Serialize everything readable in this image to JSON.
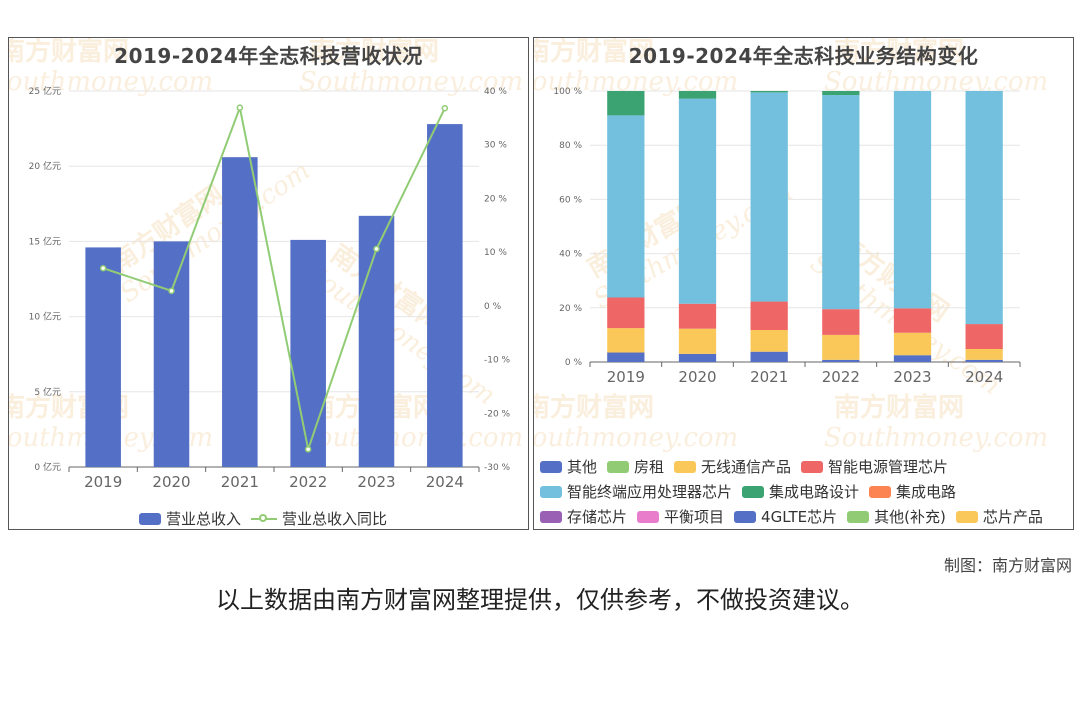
{
  "watermark": {
    "cn": "南方财富网",
    "en": "Southmoney.com"
  },
  "credit": "制图：南方财富网",
  "disclaimer": "以上数据由南方财富网整理提供，仅供参考，不做投资建议。",
  "colors": {
    "revenue_bar": "#5470c6",
    "yoy_line": "#91cc75"
  },
  "chart_data": [
    {
      "type": "bar",
      "title": "2019-2024年全志科技营收状况",
      "categories": [
        "2019",
        "2020",
        "2021",
        "2022",
        "2023",
        "2024"
      ],
      "series": [
        {
          "name": "营业总收入",
          "type": "bar",
          "axis": "left",
          "values": [
            14.6,
            15.0,
            20.6,
            15.1,
            16.7,
            22.8
          ]
        },
        {
          "name": "营业总收入同比",
          "type": "line",
          "axis": "right",
          "values": [
            7.0,
            2.8,
            36.9,
            -26.7,
            10.6,
            36.8
          ]
        }
      ],
      "left_axis": {
        "ticks": [
          "0 亿元",
          "5 亿元",
          "10 亿元",
          "15 亿元",
          "20 亿元",
          "25 亿元"
        ],
        "ylim": [
          0,
          25
        ]
      },
      "right_axis": {
        "ticks": [
          "-30 %",
          "-20 %",
          "-10 %",
          "0 %",
          "10 %",
          "20 %",
          "30 %",
          "40 %"
        ],
        "ylim": [
          -30,
          40
        ]
      },
      "grid": true,
      "legend": "bottom"
    },
    {
      "type": "bar",
      "stacked": true,
      "title": "2019-2024年全志科技业务结构变化",
      "categories": [
        "2019",
        "2020",
        "2021",
        "2022",
        "2023",
        "2024"
      ],
      "y_ticks": [
        "0 %",
        "20 %",
        "40 %",
        "60 %",
        "80 %",
        "100 %"
      ],
      "ylim": [
        0,
        100
      ],
      "grid": true,
      "legend": "bottom",
      "series": [
        {
          "name": "其他",
          "color": "#5470c6",
          "values": [
            3.5,
            3.0,
            3.8,
            0.8,
            2.5,
            0.8
          ]
        },
        {
          "name": "房租",
          "color": "#91cc75",
          "values": [
            0,
            0,
            0,
            0,
            0,
            0
          ]
        },
        {
          "name": "无线通信产品",
          "color": "#fac858",
          "values": [
            9.0,
            9.3,
            8.0,
            9.2,
            8.3,
            4.0
          ]
        },
        {
          "name": "智能电源管理芯片",
          "color": "#ee6666",
          "values": [
            11.3,
            9.2,
            10.5,
            9.5,
            9.0,
            9.2
          ]
        },
        {
          "name": "智能终端应用处理器芯片",
          "color": "#73c0de",
          "values": [
            67.2,
            75.7,
            77.2,
            79.0,
            80.2,
            86.0
          ]
        },
        {
          "name": "集成电路设计",
          "color": "#3ba272",
          "values": [
            9.0,
            2.8,
            0.5,
            1.5,
            0,
            0
          ]
        },
        {
          "name": "集成电路",
          "color": "#fc8452",
          "values": [
            0,
            0,
            0,
            0,
            0,
            0
          ]
        },
        {
          "name": "存储芯片",
          "color": "#9a60b4",
          "values": [
            0,
            0,
            0,
            0,
            0,
            0
          ]
        },
        {
          "name": "平衡项目",
          "color": "#ea7ccc",
          "values": [
            0,
            0,
            0,
            0,
            0,
            0
          ]
        },
        {
          "name": "4GLTE芯片",
          "color": "#5470c6",
          "values": [
            0,
            0,
            0,
            0,
            0,
            0
          ]
        },
        {
          "name": "其他(补充)",
          "color": "#91cc75",
          "values": [
            0,
            0,
            0,
            0,
            0,
            0
          ]
        },
        {
          "name": "芯片产品",
          "color": "#fac858",
          "values": [
            0,
            0,
            0,
            0,
            0,
            0
          ]
        }
      ]
    }
  ]
}
